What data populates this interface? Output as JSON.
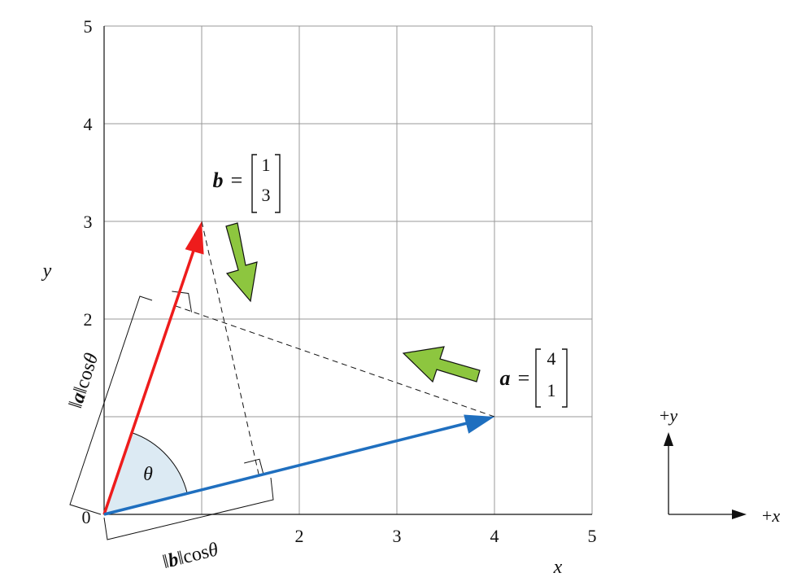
{
  "axes": {
    "x_label": "x",
    "y_label": "y",
    "x_ticks": [
      "0",
      "2",
      "3",
      "4",
      "5"
    ],
    "y_ticks": [
      "2",
      "3",
      "4",
      "5"
    ],
    "x_range": [
      0,
      5
    ],
    "y_range": [
      0,
      5
    ],
    "grid": true
  },
  "vectors": {
    "a": {
      "name": "a",
      "components": [
        "4",
        "1"
      ],
      "color": "#1f6fbf"
    },
    "b": {
      "name": "b",
      "components": [
        "1",
        "3"
      ],
      "color": "#ee1c1c"
    }
  },
  "angle_label": "θ",
  "projection_a": {
    "norm_symbol": "a",
    "func": "cos",
    "angle": "θ"
  },
  "projection_b": {
    "norm_symbol": "b",
    "func": "cos",
    "angle": "θ"
  },
  "direction_key": {
    "plus_x": "+x",
    "plus_y": "+y"
  },
  "colors": {
    "grid": "#999999",
    "angle_fill": "#dceaf3",
    "green_arrow": "#8dc63f"
  }
}
